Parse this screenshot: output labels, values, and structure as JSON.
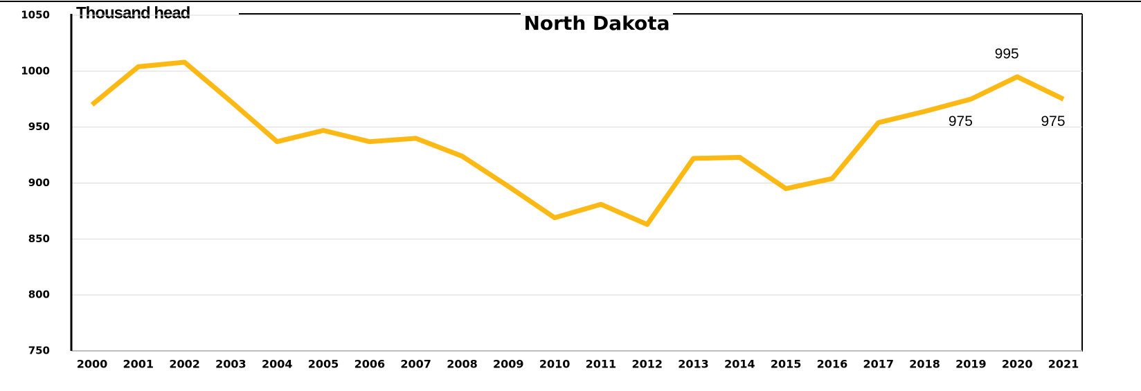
{
  "chart_data": {
    "type": "line",
    "title": "North Dakota",
    "y_label": "Thousand head",
    "categories": [
      "2000",
      "2001",
      "2002",
      "2003",
      "2004",
      "2005",
      "2006",
      "2007",
      "2008",
      "2009",
      "2010",
      "2011",
      "2012",
      "2013",
      "2014",
      "2015",
      "2016",
      "2017",
      "2018",
      "2019",
      "2020",
      "2021"
    ],
    "series": [
      {
        "name": "North Dakota",
        "color": "#fdb913",
        "values": [
          970,
          1004,
          1008,
          973,
          937,
          947,
          937,
          940,
          924,
          897,
          869,
          881,
          863,
          922,
          923,
          895,
          904,
          954,
          964,
          975,
          995,
          975
        ],
        "value_labels": [
          null,
          null,
          null,
          null,
          null,
          null,
          null,
          null,
          null,
          null,
          null,
          null,
          null,
          null,
          null,
          null,
          null,
          null,
          null,
          "975",
          "995",
          "975"
        ]
      }
    ],
    "ylim": [
      750,
      1050
    ],
    "yticks": [
      750,
      800,
      850,
      900,
      950,
      1000,
      1050
    ],
    "grid": true
  }
}
